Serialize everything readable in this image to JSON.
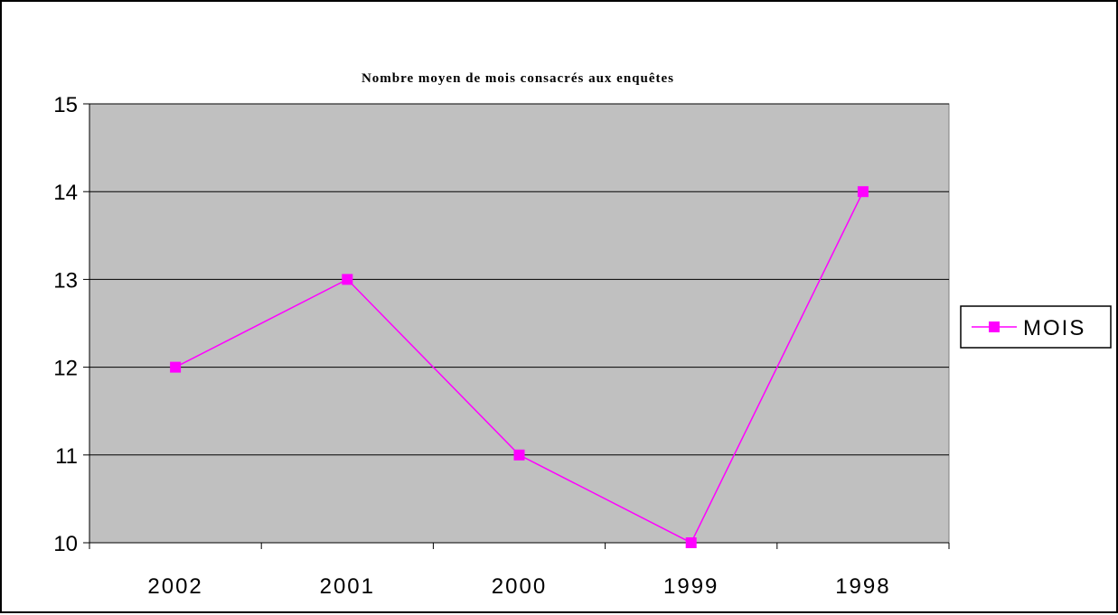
{
  "chart_data": {
    "type": "line",
    "title": "Nombre moyen de mois consacrés aux enquêtes",
    "categories": [
      "2002",
      "2001",
      "2000",
      "1999",
      "1998"
    ],
    "series": [
      {
        "name": "MOIS",
        "values": [
          12,
          13,
          11,
          10,
          14
        ],
        "color": "#ff00ff"
      }
    ],
    "ylim": [
      10,
      15
    ],
    "yticks": [
      "10",
      "11",
      "12",
      "13",
      "14",
      "15"
    ],
    "xlabel": "",
    "ylabel": "",
    "grid": true,
    "legend": "right",
    "plot_background": "#c0c0c0"
  }
}
